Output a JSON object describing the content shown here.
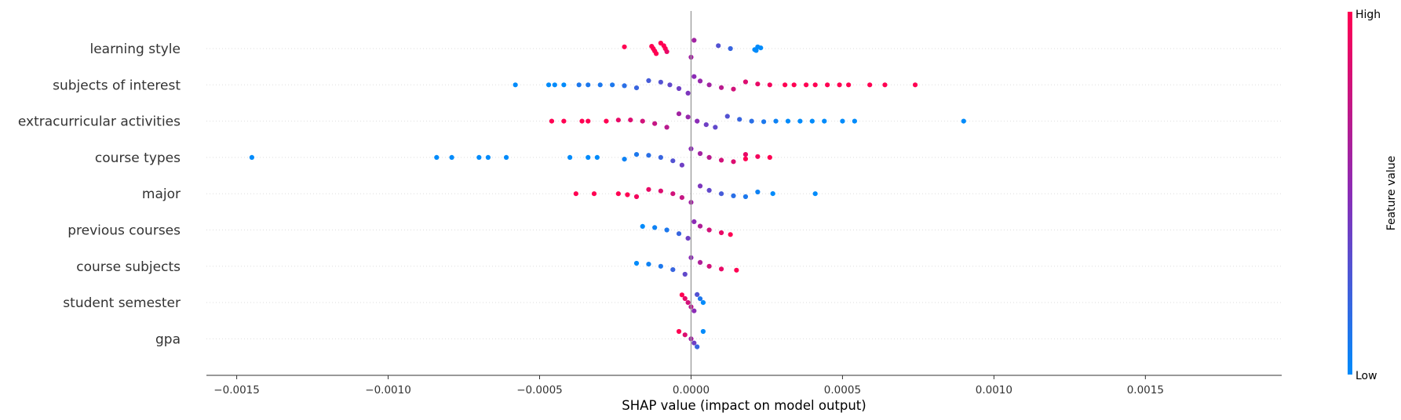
{
  "chart_data": {
    "type": "scatter",
    "xlabel": "SHAP value (impact on model output)",
    "xlim": [
      -0.0016,
      0.00195
    ],
    "x_ticks": [
      {
        "value": -0.0015,
        "label": "−0.0015"
      },
      {
        "value": -0.001,
        "label": "−0.0010"
      },
      {
        "value": -0.0005,
        "label": "−0.0005"
      },
      {
        "value": 0.0,
        "label": "0.0000"
      },
      {
        "value": 0.0005,
        "label": "0.0005"
      },
      {
        "value": 0.001,
        "label": "0.0010"
      },
      {
        "value": 0.0015,
        "label": "0.0015"
      }
    ],
    "colorbar": {
      "title": "Feature value",
      "high_label": "High",
      "low_label": "Low",
      "low_color": "#008bfb",
      "high_color": "#ff0052"
    },
    "features": [
      {
        "name": "learning style",
        "points": [
          [
            -0.00022,
            1
          ],
          [
            -0.00013,
            1
          ],
          [
            -0.000125,
            1
          ],
          [
            -0.00012,
            1
          ],
          [
            -0.000115,
            1
          ],
          [
            -0.0001,
            1
          ],
          [
            -9e-05,
            1
          ],
          [
            -8.5e-05,
            1
          ],
          [
            -8e-05,
            0.9
          ],
          [
            0.0,
            0.6
          ],
          [
            1e-05,
            0.6
          ],
          [
            9e-05,
            0.3
          ],
          [
            0.00013,
            0.2
          ],
          [
            0.00021,
            0
          ],
          [
            0.000215,
            0
          ],
          [
            0.00022,
            0
          ],
          [
            0.00023,
            0
          ]
        ]
      },
      {
        "name": "subjects of interest",
        "points": [
          [
            -0.00058,
            0
          ],
          [
            -0.00047,
            0
          ],
          [
            -0.00045,
            0
          ],
          [
            -0.00042,
            0
          ],
          [
            -0.00037,
            0.1
          ],
          [
            -0.00034,
            0.1
          ],
          [
            -0.0003,
            0.1
          ],
          [
            -0.00026,
            0.1
          ],
          [
            -0.00022,
            0.15
          ],
          [
            -0.00018,
            0.2
          ],
          [
            -0.00014,
            0.25
          ],
          [
            -0.0001,
            0.3
          ],
          [
            -7e-05,
            0.35
          ],
          [
            -4e-05,
            0.4
          ],
          [
            -1e-05,
            0.45
          ],
          [
            1e-05,
            0.5
          ],
          [
            3e-05,
            0.55
          ],
          [
            6e-05,
            0.6
          ],
          [
            0.0001,
            0.7
          ],
          [
            0.00014,
            0.8
          ],
          [
            0.00018,
            0.85
          ],
          [
            0.00022,
            0.9
          ],
          [
            0.00026,
            0.95
          ],
          [
            0.00031,
            1
          ],
          [
            0.00034,
            1
          ],
          [
            0.00038,
            1
          ],
          [
            0.00041,
            1
          ],
          [
            0.00045,
            1
          ],
          [
            0.00049,
            1
          ],
          [
            0.00052,
            1
          ],
          [
            0.00059,
            1
          ],
          [
            0.00064,
            1
          ],
          [
            0.00074,
            1
          ]
        ]
      },
      {
        "name": "extracurricular activities",
        "points": [
          [
            -0.00046,
            1
          ],
          [
            -0.00042,
            1
          ],
          [
            -0.00036,
            1
          ],
          [
            -0.00034,
            1
          ],
          [
            -0.00028,
            1
          ],
          [
            -0.00024,
            0.9
          ],
          [
            -0.0002,
            0.85
          ],
          [
            -0.00016,
            0.8
          ],
          [
            -0.00012,
            0.75
          ],
          [
            -8e-05,
            0.7
          ],
          [
            -4e-05,
            0.6
          ],
          [
            -1e-05,
            0.55
          ],
          [
            2e-05,
            0.5
          ],
          [
            5e-05,
            0.4
          ],
          [
            8e-05,
            0.35
          ],
          [
            0.00012,
            0.3
          ],
          [
            0.00016,
            0.2
          ],
          [
            0.0002,
            0.15
          ],
          [
            0.00024,
            0.1
          ],
          [
            0.00028,
            0.05
          ],
          [
            0.00032,
            0
          ],
          [
            0.00036,
            0
          ],
          [
            0.0004,
            0
          ],
          [
            0.00044,
            0
          ],
          [
            0.0005,
            0
          ],
          [
            0.00054,
            0
          ],
          [
            0.0009,
            0
          ]
        ]
      },
      {
        "name": "course types",
        "points": [
          [
            -0.00145,
            0
          ],
          [
            -0.00084,
            0
          ],
          [
            -0.00079,
            0
          ],
          [
            -0.0007,
            0
          ],
          [
            -0.00067,
            0
          ],
          [
            -0.00061,
            0
          ],
          [
            -0.0004,
            0
          ],
          [
            -0.00034,
            0
          ],
          [
            -0.00031,
            0
          ],
          [
            -0.00022,
            0.05
          ],
          [
            -0.00018,
            0.1
          ],
          [
            -0.00014,
            0.15
          ],
          [
            -0.0001,
            0.2
          ],
          [
            -6e-05,
            0.3
          ],
          [
            -3e-05,
            0.4
          ],
          [
            0.0,
            0.5
          ],
          [
            3e-05,
            0.6
          ],
          [
            6e-05,
            0.7
          ],
          [
            0.0001,
            0.8
          ],
          [
            0.00014,
            0.85
          ],
          [
            0.00018,
            0.9
          ],
          [
            0.00022,
            0.95
          ],
          [
            0.00026,
            1
          ],
          [
            0.00018,
            1
          ]
        ]
      },
      {
        "name": "major",
        "points": [
          [
            -0.00038,
            1
          ],
          [
            -0.00032,
            1
          ],
          [
            -0.00024,
            1
          ],
          [
            -0.00021,
            1
          ],
          [
            -0.00018,
            0.95
          ],
          [
            -0.00014,
            0.9
          ],
          [
            -0.0001,
            0.85
          ],
          [
            -6e-05,
            0.8
          ],
          [
            -3e-05,
            0.75
          ],
          [
            0.0,
            0.6
          ],
          [
            3e-05,
            0.45
          ],
          [
            6e-05,
            0.35
          ],
          [
            0.0001,
            0.25
          ],
          [
            0.00014,
            0.15
          ],
          [
            0.00018,
            0.1
          ],
          [
            0.00022,
            0.05
          ],
          [
            0.00027,
            0
          ],
          [
            0.00041,
            0
          ]
        ]
      },
      {
        "name": "previous courses",
        "points": [
          [
            -0.00016,
            0
          ],
          [
            -0.00012,
            0.05
          ],
          [
            -8e-05,
            0.1
          ],
          [
            -4e-05,
            0.2
          ],
          [
            -1e-05,
            0.4
          ],
          [
            1e-05,
            0.5
          ],
          [
            3e-05,
            0.65
          ],
          [
            6e-05,
            0.8
          ],
          [
            0.0001,
            0.9
          ],
          [
            0.00013,
            1
          ]
        ]
      },
      {
        "name": "course subjects",
        "points": [
          [
            -0.00018,
            0
          ],
          [
            -0.00014,
            0.05
          ],
          [
            -0.0001,
            0.1
          ],
          [
            -6e-05,
            0.2
          ],
          [
            -2e-05,
            0.35
          ],
          [
            0.0,
            0.5
          ],
          [
            3e-05,
            0.65
          ],
          [
            6e-05,
            0.8
          ],
          [
            0.0001,
            0.9
          ],
          [
            0.00015,
            1
          ]
        ]
      },
      {
        "name": "student semester",
        "points": [
          [
            -3e-05,
            1
          ],
          [
            -2e-05,
            0.9
          ],
          [
            -1e-05,
            0.8
          ],
          [
            0.0,
            0.7
          ],
          [
            1e-05,
            0.5
          ],
          [
            2e-05,
            0.3
          ],
          [
            3e-05,
            0.1
          ],
          [
            4e-05,
            0
          ]
        ]
      },
      {
        "name": "gpa",
        "points": [
          [
            -4e-05,
            1
          ],
          [
            -2e-05,
            0.85
          ],
          [
            0.0,
            0.6
          ],
          [
            1e-05,
            0.4
          ],
          [
            2e-05,
            0.2
          ],
          [
            4e-05,
            0
          ]
        ]
      }
    ]
  }
}
